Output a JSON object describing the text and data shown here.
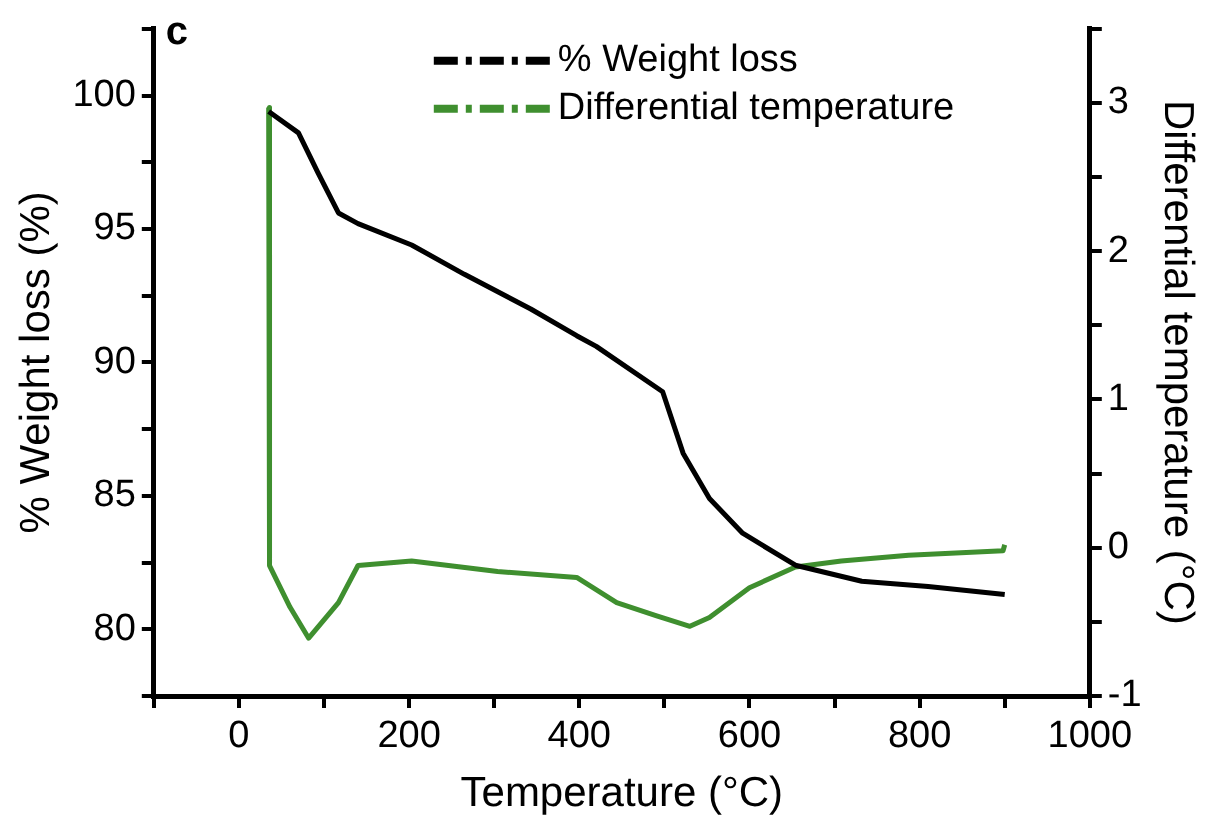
{
  "chart_data": {
    "type": "line",
    "xlabel": "Temperature (°C)",
    "ylabel": "% Weight loss (%)",
    "y2label": "Differential temperature (°C)",
    "annotations": [
      "c"
    ],
    "xlim": [
      -100,
      1000
    ],
    "xticks": [
      {
        "value": -100,
        "label": null
      },
      0,
      {
        "value": 100,
        "label": null
      },
      200,
      {
        "value": 300,
        "label": null
      },
      400,
      {
        "value": 500,
        "label": null
      },
      600,
      {
        "value": 700,
        "label": null
      },
      800,
      {
        "value": 900,
        "label": null
      },
      1000
    ],
    "ylim": [
      77.5,
      102.5
    ],
    "yticks": [
      {
        "value": 77.5,
        "label": null
      },
      80,
      {
        "value": 82.5,
        "label": null
      },
      85,
      {
        "value": 87.5,
        "label": null
      },
      90,
      {
        "value": 92.5,
        "label": null
      },
      95,
      {
        "value": 97.5,
        "label": null
      },
      100,
      {
        "value": 102.5,
        "label": null
      }
    ],
    "y2lim": [
      -1,
      3.5
    ],
    "y2ticks": [
      -1,
      {
        "value": -0.5,
        "label": null
      },
      0,
      {
        "value": 0.5,
        "label": null
      },
      1,
      {
        "value": 1.5,
        "label": null
      },
      2,
      {
        "value": 2.5,
        "label": null
      },
      3,
      {
        "value": 3.5,
        "label": null
      }
    ],
    "grid": false,
    "legend": "top right",
    "marker": "none",
    "line_style": "solid",
    "series": [
      {
        "name": "% Weight loss",
        "color": "#000000",
        "x": [
          35,
          70,
          93,
          117,
          140,
          203,
          265,
          343,
          397,
          420,
          498,
          522,
          553,
          592,
          654,
          732,
          810,
          900
        ],
        "values": [
          99.4,
          98.6,
          97.1,
          95.6,
          95.2,
          94.4,
          93.3,
          92.0,
          91.0,
          90.6,
          88.9,
          86.6,
          84.9,
          83.6,
          82.4,
          81.8,
          81.6,
          81.3
        ]
      },
      {
        "name": "Differential temperature",
        "color": "#3f8f2f",
        "axis": "y2",
        "x": [
          35,
          36,
          60,
          82,
          117,
          140,
          203,
          304,
          397,
          444,
          491,
          530,
          553,
          600,
          654,
          708,
          787,
          898,
          900
        ],
        "values": [
          2.97,
          -0.12,
          -0.4,
          -0.61,
          -0.37,
          -0.12,
          -0.09,
          -0.16,
          -0.2,
          -0.37,
          -0.46,
          -0.53,
          -0.47,
          -0.27,
          -0.13,
          -0.09,
          -0.05,
          -0.02,
          0.02
        ]
      }
    ]
  }
}
